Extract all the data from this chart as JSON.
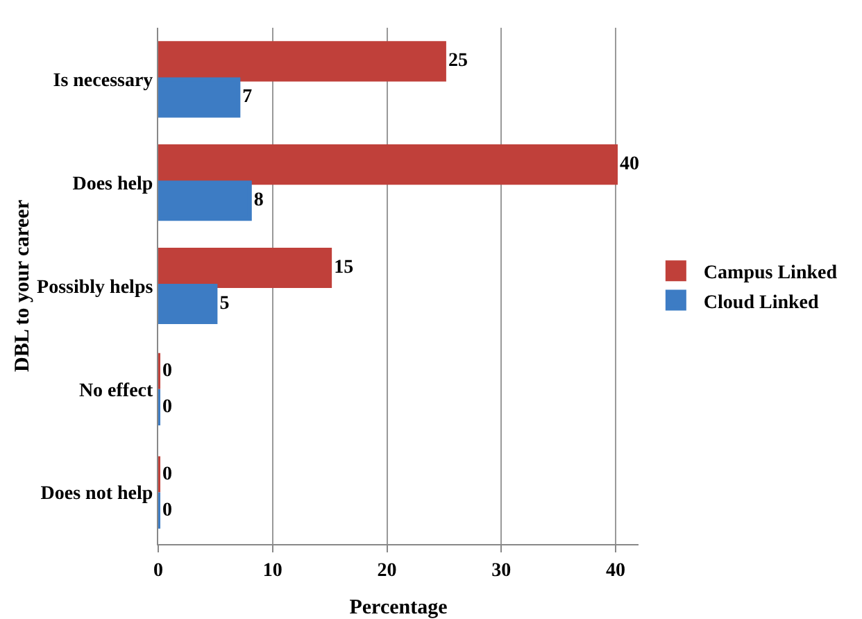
{
  "chart_data": {
    "type": "bar",
    "orientation": "horizontal",
    "xlabel": "Percentage",
    "ylabel": "DBL to your career",
    "categories": [
      "Is necessary",
      "Does help",
      "Possibly helps",
      "No effect",
      "Does not help"
    ],
    "series": [
      {
        "name": "Campus Linked",
        "color": "#c0403a",
        "values": [
          25,
          40,
          15,
          0,
          0
        ]
      },
      {
        "name": "Cloud Linked",
        "color": "#3d7cc4",
        "values": [
          7,
          8,
          5,
          0,
          0
        ]
      }
    ],
    "xlim": [
      0,
      42
    ],
    "xticks": [
      0,
      10,
      20,
      30,
      40
    ],
    "grid": "x",
    "legend": "right",
    "data_labels": true
  }
}
